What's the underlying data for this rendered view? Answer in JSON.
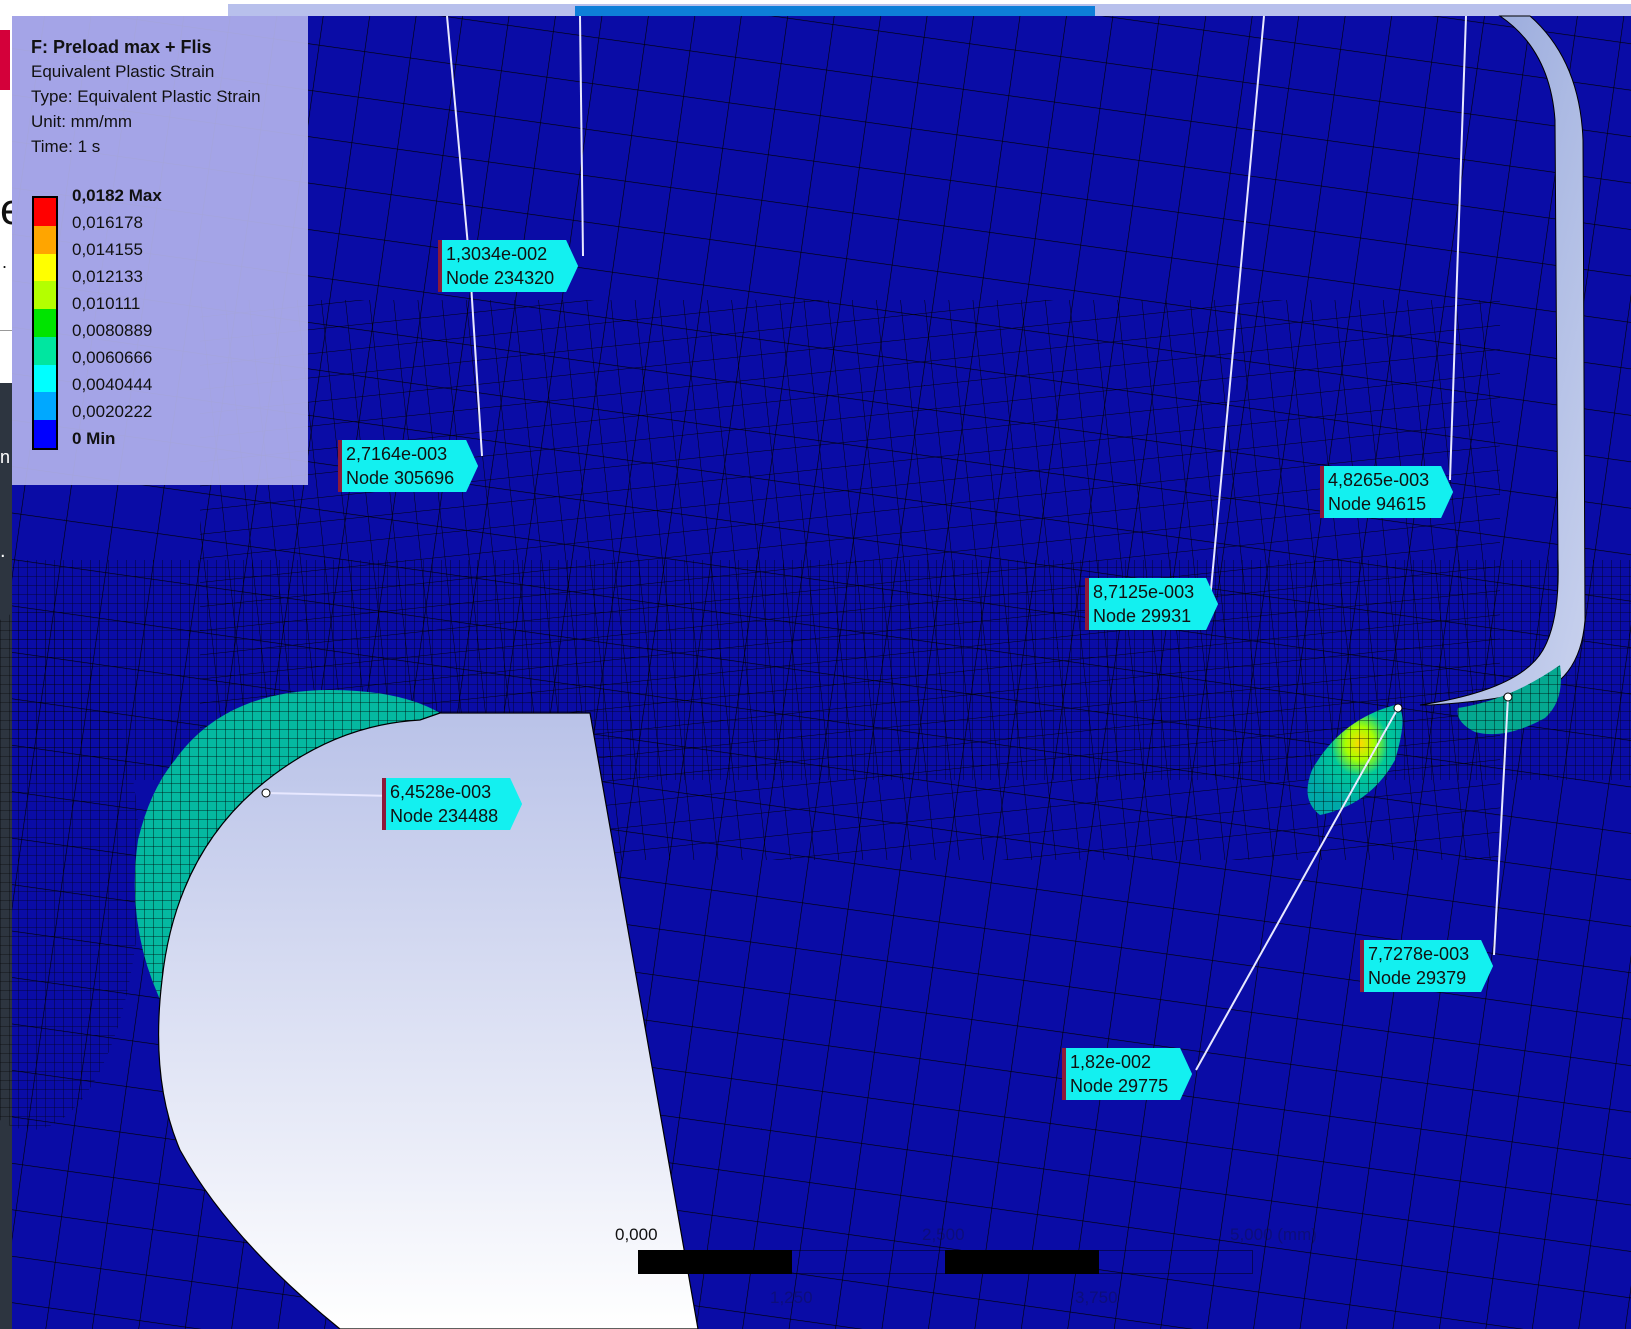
{
  "legend": {
    "title": "F: Preload max + Flis",
    "subtitle": "Equivalent Plastic Strain",
    "type_line": "Type: Equivalent Plastic Strain",
    "unit_line": "Unit: mm/mm",
    "time_line": "Time: 1 s",
    "levels": [
      {
        "label": "0,0182 Max",
        "color": "#ff0000",
        "bold": true
      },
      {
        "label": "0,016178",
        "color": "#ffa500"
      },
      {
        "label": "0,014155",
        "color": "#ffff00"
      },
      {
        "label": "0,012133",
        "color": "#b4ff00"
      },
      {
        "label": "0,010111",
        "color": "#00e400"
      },
      {
        "label": "0,0080889",
        "color": "#00e6a0"
      },
      {
        "label": "0,0060666",
        "color": "#00ffff"
      },
      {
        "label": "0,0040444",
        "color": "#00a8ff"
      },
      {
        "label": "0,0020222",
        "color": "#0000ff"
      },
      {
        "label": "0 Min",
        "bold": true
      }
    ]
  },
  "probes": [
    {
      "value": "1,3034e-002",
      "node": "Node 234320"
    },
    {
      "value": "2,7164e-003",
      "node": "Node 305696"
    },
    {
      "value": "6,4528e-003",
      "node": "Node 234488"
    },
    {
      "value": "4,8265e-003",
      "node": "Node 94615"
    },
    {
      "value": "8,7125e-003",
      "node": "Node 29931"
    },
    {
      "value": "7,7278e-003",
      "node": "Node 29379"
    },
    {
      "value": "1,82e-002",
      "node": "Node 29775"
    }
  ],
  "scale_bar": {
    "t0": "0,000",
    "t2": "2,500",
    "t4": "5,000 (mm)",
    "t1": "1,250",
    "t3": "3,750"
  },
  "background_fragments": {
    "e": "e",
    "n": "n"
  },
  "colors": {
    "mesh_base": "#0a0ca6",
    "mesh_lines": "#000000",
    "probe_fill": "#13f0f0",
    "legend_bg": "#b0b0ec"
  }
}
